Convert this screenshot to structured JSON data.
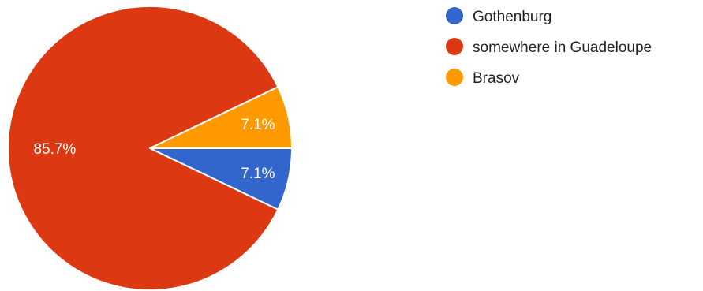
{
  "chart_data": {
    "type": "pie",
    "title": "",
    "slices": [
      {
        "label": "Gothenburg",
        "value": 7.1,
        "display": "7.1%",
        "color": "#3366cc"
      },
      {
        "label": "somewhere in Guadeloupe",
        "value": 85.7,
        "display": "85.7%",
        "color": "#dc3912"
      },
      {
        "label": "Brasov",
        "value": 7.1,
        "display": "7.1%",
        "color": "#ff9900"
      }
    ],
    "start": "3 o'clock, clockwise",
    "legend_position": "right"
  }
}
